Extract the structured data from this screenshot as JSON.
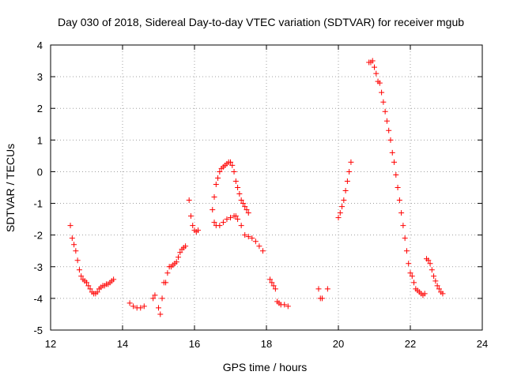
{
  "chart_data": {
    "type": "scatter",
    "title": "Day 030 of 2018, Sidereal Day-to-day VTEC variation (SDTVAR) for receiver mgub",
    "xlabel": "GPS time / hours",
    "ylabel": "SDTVAR / TECUs",
    "xlim": [
      12,
      24
    ],
    "ylim": [
      -5,
      4
    ],
    "xticks": [
      12,
      14,
      16,
      18,
      20,
      22,
      24
    ],
    "yticks": [
      -5,
      -4,
      -3,
      -2,
      -1,
      0,
      1,
      2,
      3,
      4
    ],
    "grid": true,
    "marker": "+",
    "color": "#ff0000",
    "series": [
      {
        "name": "SDTVAR",
        "x": [
          12.55,
          12.6,
          12.65,
          12.7,
          12.75,
          12.8,
          12.85,
          12.9,
          12.95,
          13.0,
          13.05,
          13.1,
          13.15,
          13.2,
          13.25,
          13.3,
          13.35,
          13.4,
          13.45,
          13.5,
          13.55,
          13.6,
          13.65,
          13.7,
          13.75,
          14.2,
          14.3,
          14.4,
          14.5,
          14.6,
          14.85,
          14.9,
          15.0,
          15.05,
          15.1,
          15.15,
          15.2,
          15.25,
          15.3,
          15.35,
          15.4,
          15.45,
          15.5,
          15.55,
          15.6,
          15.65,
          15.7,
          15.75,
          15.85,
          15.9,
          15.95,
          16.0,
          16.05,
          16.1,
          16.5,
          16.55,
          16.6,
          16.65,
          16.7,
          16.75,
          16.8,
          16.85,
          16.9,
          16.95,
          17.0,
          17.05,
          17.1,
          17.15,
          17.2,
          17.25,
          17.3,
          17.35,
          17.4,
          17.45,
          17.5,
          16.55,
          16.6,
          16.7,
          16.8,
          16.9,
          17.0,
          17.1,
          17.15,
          17.2,
          17.3,
          17.4,
          17.5,
          17.6,
          17.7,
          17.8,
          17.9,
          18.1,
          18.15,
          18.2,
          18.25,
          18.3,
          18.35,
          18.4,
          18.5,
          18.6,
          19.45,
          19.5,
          19.55,
          19.7,
          20.0,
          20.05,
          20.1,
          20.15,
          20.2,
          20.25,
          20.3,
          20.35,
          20.85,
          20.9,
          20.95,
          21.0,
          21.05,
          21.1,
          21.15,
          21.2,
          21.25,
          21.3,
          21.35,
          21.4,
          21.45,
          21.5,
          21.55,
          21.6,
          21.65,
          21.7,
          21.75,
          21.8,
          21.85,
          21.9,
          21.95,
          22.0,
          22.05,
          22.1,
          22.15,
          22.2,
          22.25,
          22.3,
          22.35,
          22.4,
          22.45,
          22.5,
          22.55,
          22.6,
          22.65,
          22.7,
          22.75,
          22.8,
          22.85,
          22.9
        ],
        "y": [
          -1.7,
          -2.1,
          -2.3,
          -2.5,
          -2.8,
          -3.1,
          -3.3,
          -3.4,
          -3.45,
          -3.5,
          -3.6,
          -3.7,
          -3.8,
          -3.85,
          -3.85,
          -3.8,
          -3.7,
          -3.65,
          -3.6,
          -3.6,
          -3.55,
          -3.55,
          -3.5,
          -3.45,
          -3.4,
          -4.15,
          -4.25,
          -4.3,
          -4.3,
          -4.25,
          -4.0,
          -3.9,
          -4.3,
          -4.5,
          -4.0,
          -3.5,
          -3.5,
          -3.2,
          -3.0,
          -3.0,
          -2.95,
          -2.9,
          -2.85,
          -2.7,
          -2.55,
          -2.45,
          -2.4,
          -2.35,
          -0.9,
          -1.4,
          -1.7,
          -1.85,
          -1.9,
          -1.85,
          -1.2,
          -0.8,
          -0.4,
          -0.2,
          0.0,
          0.1,
          0.15,
          0.2,
          0.25,
          0.3,
          0.3,
          0.2,
          0.0,
          -0.3,
          -0.5,
          -0.7,
          -0.9,
          -1.0,
          -1.1,
          -1.2,
          -1.3,
          -1.6,
          -1.7,
          -1.7,
          -1.6,
          -1.5,
          -1.45,
          -1.4,
          -1.4,
          -1.5,
          -1.7,
          -2.0,
          -2.05,
          -2.1,
          -2.2,
          -2.35,
          -2.5,
          -3.4,
          -3.5,
          -3.6,
          -3.7,
          -4.1,
          -4.15,
          -4.2,
          -4.2,
          -4.25,
          -3.7,
          -4.0,
          -4.0,
          -3.7,
          -1.45,
          -1.3,
          -1.1,
          -0.9,
          -0.6,
          -0.3,
          0.0,
          0.3,
          3.45,
          3.45,
          3.5,
          3.3,
          3.1,
          2.85,
          2.8,
          2.5,
          2.2,
          1.9,
          1.6,
          1.3,
          1.0,
          0.6,
          0.3,
          -0.1,
          -0.5,
          -0.9,
          -1.3,
          -1.7,
          -2.1,
          -2.5,
          -2.9,
          -3.2,
          -3.3,
          -3.5,
          -3.7,
          -3.75,
          -3.8,
          -3.85,
          -3.9,
          -3.85,
          -2.75,
          -2.8,
          -2.9,
          -3.1,
          -3.3,
          -3.45,
          -3.6,
          -3.7,
          -3.8,
          -3.85
        ]
      }
    ]
  }
}
